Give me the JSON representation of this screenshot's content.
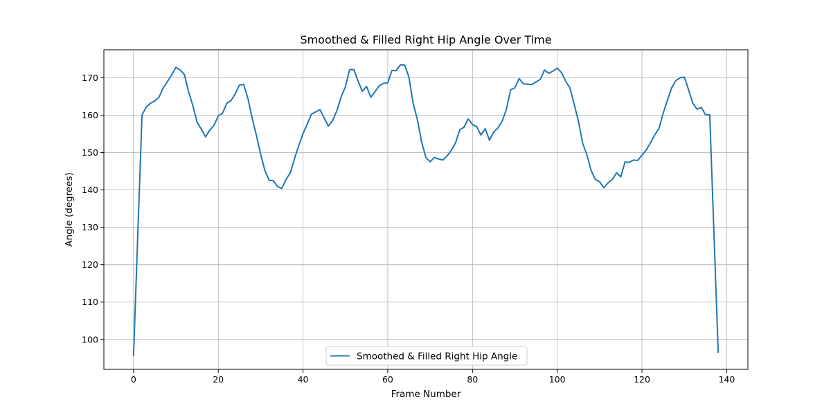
{
  "chart_data": {
    "type": "line",
    "title": "Smoothed & Filled Right Hip Angle Over Time",
    "xlabel": "Frame Number",
    "ylabel": "Angle (degrees)",
    "xlim": [
      -7,
      145
    ],
    "ylim": [
      92,
      177.5
    ],
    "xticks": [
      0,
      20,
      40,
      60,
      80,
      100,
      120,
      140
    ],
    "yticks": [
      100,
      110,
      120,
      130,
      140,
      150,
      160,
      170
    ],
    "grid": true,
    "legend": "bottom-center",
    "colors": {
      "line": "#1f77b4"
    },
    "series": [
      {
        "name": "Smoothed & Filled Right Hip Angle",
        "x": [
          0,
          1,
          2,
          3,
          4,
          5,
          6,
          7,
          8,
          9,
          10,
          11,
          12,
          13,
          14,
          15,
          16,
          17,
          18,
          19,
          20,
          21,
          22,
          23,
          24,
          25,
          26,
          27,
          28,
          29,
          30,
          31,
          32,
          33,
          34,
          35,
          36,
          37,
          38,
          39,
          40,
          41,
          42,
          43,
          44,
          45,
          46,
          47,
          48,
          49,
          50,
          51,
          52,
          53,
          54,
          55,
          56,
          57,
          58,
          59,
          60,
          61,
          62,
          63,
          64,
          65,
          66,
          67,
          68,
          69,
          70,
          71,
          72,
          73,
          74,
          75,
          76,
          77,
          78,
          79,
          80,
          81,
          82,
          83,
          84,
          85,
          86,
          87,
          88,
          89,
          90,
          91,
          92,
          93,
          94,
          95,
          96,
          97,
          98,
          99,
          100,
          101,
          102,
          103,
          104,
          105,
          106,
          107,
          108,
          109,
          110,
          111,
          112,
          113,
          114,
          115,
          116,
          117,
          118,
          119,
          120,
          121,
          122,
          123,
          124,
          125,
          126,
          127,
          128,
          129,
          130,
          131,
          132,
          133,
          134,
          135,
          136,
          137,
          138
        ],
        "y": [
          95.5,
          128,
          160,
          162.2,
          163.2,
          163.8,
          164.8,
          167.3,
          169,
          170.8,
          172.8,
          172.1,
          170.9,
          166.2,
          162.6,
          158.1,
          156.3,
          154.2,
          156,
          157.3,
          159.8,
          160.5,
          163.2,
          163.9,
          165.7,
          168.1,
          168.2,
          164.5,
          159.2,
          154.6,
          149.6,
          145.2,
          142.6,
          142.5,
          140.9,
          140.4,
          142.8,
          144.6,
          148.4,
          151.9,
          155.1,
          157.6,
          160.3,
          160.9,
          161.5,
          159.2,
          157.1,
          158.6,
          161.2,
          164.9,
          167.6,
          172.2,
          172.2,
          169.1,
          166.4,
          167.7,
          164.8,
          166.3,
          167.9,
          168.5,
          168.7,
          172,
          171.9,
          173.5,
          173.4,
          170.2,
          163.1,
          158.8,
          152.8,
          148.7,
          147.5,
          148.7,
          148.3,
          148,
          149.1,
          150.6,
          152.6,
          156.1,
          156.8,
          159,
          157.5,
          156.9,
          154.7,
          156.4,
          153.3,
          155.5,
          156.6,
          158.4,
          161.6,
          166.8,
          167.3,
          169.8,
          168.4,
          168.3,
          168.2,
          168.9,
          169.6,
          172.1,
          171.2,
          171.8,
          172.6,
          171.4,
          169.1,
          167.3,
          162.9,
          158.4,
          152.5,
          149.4,
          145.2,
          142.8,
          142.2,
          140.6,
          141.9,
          142.8,
          144.6,
          143.5,
          147.5,
          147.4,
          148,
          147.9,
          149.3,
          150.7,
          152.6,
          154.7,
          156.4,
          160.5,
          164,
          167.3,
          169.3,
          170,
          170.2,
          166.8,
          163.2,
          161.6,
          162.1,
          160.1,
          160.1,
          128,
          96.4
        ]
      }
    ]
  }
}
